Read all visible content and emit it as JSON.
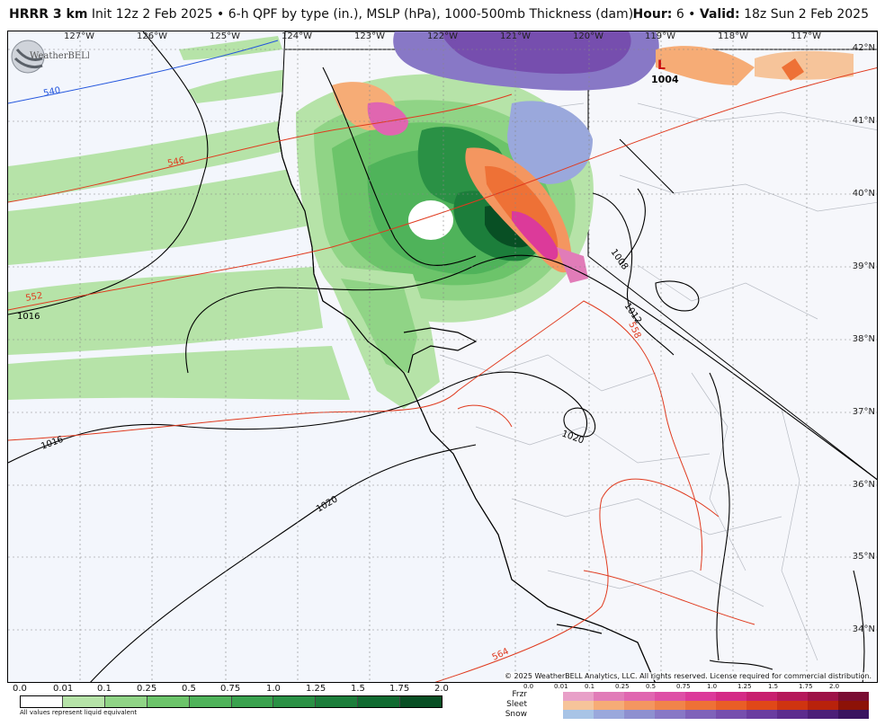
{
  "header": {
    "model": "HRRR 3 km",
    "description": "Init 12z 2 Feb 2025 • 6-h QPF by type (in.), MSLP (hPa), 1000-500mb Thickness (dam)",
    "hour_label": "Hour:",
    "hour_value": "6 •",
    "valid_label": "Valid:",
    "valid_value": "18z Sun 2 Feb 2025"
  },
  "map": {
    "longitude_labels": [
      "127°W",
      "126°W",
      "125°W",
      "124°W",
      "123°W",
      "122°W",
      "121°W",
      "120°W",
      "119°W",
      "118°W",
      "117°W"
    ],
    "latitude_labels": [
      "42°N",
      "41°N",
      "40°N",
      "39°N",
      "38°N",
      "37°N",
      "36°N",
      "35°N",
      "34°N"
    ],
    "isobar_labels": [
      "1016",
      "1016",
      "1020",
      "1020",
      "1012",
      "1008",
      "1004"
    ],
    "thickness_labels": [
      "540",
      "546",
      "552",
      "558",
      "564"
    ],
    "low_center": {
      "symbol": "L",
      "pressure": "1004"
    },
    "copyright": "© 2025 WeatherBELL Analytics, LLC. All rights reserved. License required for commercial distribution.",
    "logo_text": "WeatherBELL",
    "colors": {
      "background": "#f3f6fc",
      "isobar": "#000000",
      "thickness_cold": "#2255dd",
      "thickness_warm": "#e03a1e",
      "land_border": "#b8bcc4"
    }
  },
  "legend": {
    "qpf_ticks": [
      "0.0",
      "0.01",
      "0.1",
      "0.25",
      "0.5",
      "0.75",
      "1.0",
      "1.25",
      "1.5",
      "1.75",
      "2.0"
    ],
    "qpf_colors": [
      "#ffffff",
      "#b6e3a8",
      "#90d486",
      "#6cc46a",
      "#4fb35a",
      "#3aa24e",
      "#2a9145",
      "#1c7e3b",
      "#106b31",
      "#084f24"
    ],
    "qpf_note": "All values represent liquid equivalent",
    "ptype_labels": [
      "Frzr",
      "Sleet",
      "Snow"
    ],
    "ptype_ticks": [
      "0.0",
      "0.01",
      "0.1",
      "0.25",
      "0.5",
      "0.75",
      "1.0",
      "1.25",
      "1.5",
      "1.75",
      "2.0"
    ],
    "ptype_colors": {
      "frzr": [
        "#e8a0c8",
        "#e17cb8",
        "#e066b0",
        "#de4fa6",
        "#dc3a9a",
        "#d42a86",
        "#c81f6f",
        "#b5185a",
        "#9e1247",
        "#7a0d33"
      ],
      "sleet": [
        "#f6c49a",
        "#f6ac76",
        "#f49660",
        "#f1844a",
        "#ee7136",
        "#e95e26",
        "#e04818",
        "#cf3410",
        "#b8220b",
        "#8c1207"
      ],
      "snow": [
        "#a8c4e6",
        "#9aa8dc",
        "#8e90d0",
        "#8878c6",
        "#7f62ba",
        "#764eae",
        "#6a3ca0",
        "#5c2c8e",
        "#4c1f78",
        "#3a1460"
      ]
    }
  }
}
